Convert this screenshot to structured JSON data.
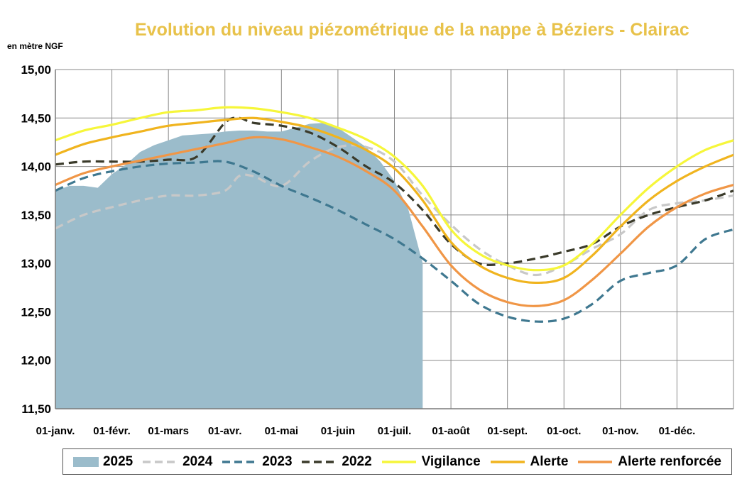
{
  "chart_data": {
    "type": "line",
    "title": "Evolution du niveau piézométrique de la nappe à Béziers - Clairac",
    "ylabel": "en mètre NGF",
    "xlabel": "",
    "ylim": [
      11.5,
      15.0
    ],
    "xlim": [
      0,
      12
    ],
    "yticks": [
      "15,00",
      "14,50",
      "14,00",
      "13,50",
      "13,00",
      "12,50",
      "12,00",
      "11,50"
    ],
    "ytick_values": [
      15.0,
      14.5,
      14.0,
      13.5,
      13.0,
      12.5,
      12.0,
      11.5
    ],
    "categories": [
      "01-janv.",
      "01-févr.",
      "01-mars",
      "01-avr.",
      "01-mai",
      "01-juin",
      "01-juil.",
      "01-août",
      "01-sept.",
      "01-oct.",
      "01-nov.",
      "01-déc."
    ],
    "grid": true,
    "legend": "bottom",
    "series": [
      {
        "name": "2025",
        "kind": "area",
        "color": "#9bbccb",
        "x": [
          0,
          0.25,
          0.5,
          0.75,
          1,
          1.25,
          1.5,
          1.75,
          2,
          2.25,
          2.5,
          2.75,
          3,
          3.25,
          3.5,
          3.75,
          4,
          4.25,
          4.5,
          4.75,
          5,
          5.25,
          5.5,
          5.75,
          6,
          6.25,
          6.5
        ],
        "values": [
          13.75,
          13.8,
          13.8,
          13.78,
          13.92,
          14.02,
          14.15,
          14.22,
          14.27,
          14.32,
          14.33,
          14.34,
          14.36,
          14.37,
          14.37,
          14.36,
          14.36,
          14.4,
          14.44,
          14.45,
          14.4,
          14.3,
          14.2,
          14.05,
          13.85,
          13.55,
          13.0
        ]
      },
      {
        "name": "2024",
        "kind": "dash",
        "color": "#c8c8c8",
        "x": [
          0,
          0.5,
          1,
          1.5,
          2,
          2.5,
          3,
          3.25,
          3.5,
          4,
          4.5,
          5,
          5.5,
          6,
          6.5,
          7,
          7.5,
          8,
          8.5,
          9,
          9.5,
          10,
          10.5,
          11,
          11.5,
          12
        ],
        "values": [
          13.36,
          13.5,
          13.58,
          13.65,
          13.7,
          13.7,
          13.75,
          13.9,
          13.9,
          13.8,
          14.05,
          14.2,
          14.2,
          14.05,
          13.7,
          13.4,
          13.15,
          12.98,
          12.88,
          12.98,
          13.15,
          13.3,
          13.55,
          13.62,
          13.65,
          13.7
        ]
      },
      {
        "name": "2023",
        "kind": "dash",
        "color": "#3f7890",
        "x": [
          0,
          0.5,
          1,
          1.5,
          2,
          2.5,
          3,
          3.5,
          4,
          4.5,
          5,
          5.5,
          6,
          6.5,
          7,
          7.5,
          8,
          8.5,
          9,
          9.5,
          10,
          10.5,
          11,
          11.5,
          12
        ],
        "values": [
          13.75,
          13.88,
          13.95,
          14.0,
          14.03,
          14.04,
          14.05,
          13.95,
          13.8,
          13.68,
          13.55,
          13.4,
          13.25,
          13.05,
          12.82,
          12.58,
          12.45,
          12.4,
          12.43,
          12.58,
          12.82,
          12.9,
          12.98,
          13.25,
          13.35
        ]
      },
      {
        "name": "2022",
        "kind": "dash",
        "color": "#3a3a2a",
        "x": [
          0,
          0.5,
          1,
          1.5,
          2,
          2.5,
          3,
          3.25,
          3.5,
          4,
          4.5,
          5,
          5.5,
          6,
          6.5,
          7,
          7.5,
          8,
          8.5,
          9,
          9.5,
          10,
          10.5,
          11,
          11.5,
          12
        ],
        "values": [
          14.02,
          14.05,
          14.05,
          14.05,
          14.07,
          14.1,
          14.45,
          14.5,
          14.45,
          14.42,
          14.35,
          14.2,
          14.0,
          13.83,
          13.55,
          13.2,
          13.0,
          13.0,
          13.05,
          13.12,
          13.2,
          13.38,
          13.5,
          13.58,
          13.65,
          13.75
        ]
      },
      {
        "name": "Vigilance",
        "kind": "solid",
        "color": "#f6f63a",
        "x": [
          0,
          0.5,
          1,
          1.5,
          2,
          2.5,
          3,
          3.5,
          4,
          4.5,
          5,
          5.5,
          6,
          6.5,
          7,
          7.5,
          8,
          8.5,
          9,
          9.5,
          10,
          10.5,
          11,
          11.5,
          12
        ],
        "values": [
          14.27,
          14.37,
          14.43,
          14.5,
          14.56,
          14.58,
          14.61,
          14.6,
          14.56,
          14.5,
          14.4,
          14.28,
          14.1,
          13.8,
          13.35,
          13.1,
          12.98,
          12.93,
          12.98,
          13.2,
          13.5,
          13.78,
          14.0,
          14.17,
          14.27
        ]
      },
      {
        "name": "Alerte",
        "kind": "solid",
        "color": "#f0b41e",
        "x": [
          0,
          0.5,
          1,
          1.5,
          2,
          2.5,
          3,
          3.5,
          4,
          4.5,
          5,
          5.5,
          6,
          6.5,
          7,
          7.5,
          8,
          8.5,
          9,
          9.5,
          10,
          10.5,
          11,
          11.5,
          12
        ],
        "values": [
          14.12,
          14.23,
          14.3,
          14.36,
          14.42,
          14.45,
          14.48,
          14.5,
          14.46,
          14.4,
          14.3,
          14.17,
          13.98,
          13.65,
          13.22,
          12.98,
          12.85,
          12.8,
          12.85,
          13.08,
          13.38,
          13.65,
          13.85,
          14.0,
          14.12
        ]
      },
      {
        "name": "Alerte renforcée",
        "kind": "solid",
        "color": "#f09646",
        "x": [
          0,
          0.5,
          1,
          1.5,
          2,
          2.5,
          3,
          3.5,
          4,
          4.5,
          5,
          5.5,
          6,
          6.5,
          7,
          7.5,
          8,
          8.5,
          9,
          9.5,
          10,
          10.5,
          11,
          11.5,
          12
        ],
        "values": [
          13.81,
          13.93,
          14.0,
          14.06,
          14.12,
          14.18,
          14.24,
          14.3,
          14.28,
          14.2,
          14.1,
          13.95,
          13.75,
          13.38,
          12.98,
          12.73,
          12.6,
          12.56,
          12.62,
          12.83,
          13.1,
          13.38,
          13.58,
          13.72,
          13.81
        ]
      }
    ]
  }
}
